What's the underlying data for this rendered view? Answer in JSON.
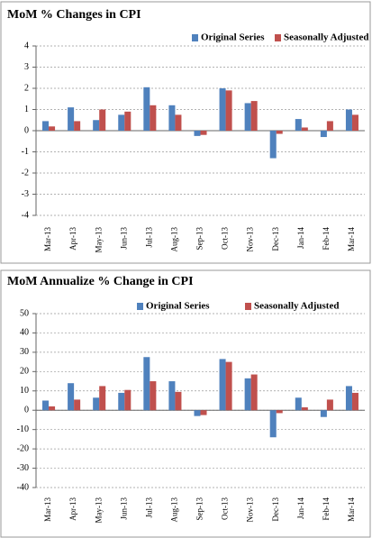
{
  "chart_data": [
    {
      "type": "bar",
      "title": "MoM % Changes in CPI",
      "categories": [
        "Mar-13",
        "Apr-13",
        "May-13",
        "Jun-13",
        "Jul-13",
        "Aug-13",
        "Sep-13",
        "Oct-13",
        "Nov-13",
        "Dec-13",
        "Jan-14",
        "Feb-14",
        "Mar-14"
      ],
      "series": [
        {
          "name": "Original Series",
          "color": "#4f81bd",
          "values": [
            0.45,
            1.1,
            0.5,
            0.75,
            2.05,
            1.2,
            -0.25,
            2.0,
            1.3,
            -1.3,
            0.55,
            -0.3,
            1.0
          ]
        },
        {
          "name": "Seasonally Adjusted",
          "color": "#c0504d",
          "values": [
            0.2,
            0.45,
            1.0,
            0.9,
            1.2,
            0.75,
            -0.2,
            1.9,
            1.4,
            -0.15,
            0.15,
            0.45,
            0.75
          ]
        }
      ],
      "ylim": [
        -4,
        4
      ],
      "yticks": [
        -4,
        -3,
        -2,
        -1,
        0,
        1,
        2,
        3,
        4
      ],
      "grid": true
    },
    {
      "type": "bar",
      "title": "MoM Annualize % Change in CPI",
      "categories": [
        "Mar-13",
        "Apr-13",
        "May-13",
        "Jun-13",
        "Jul-13",
        "Aug-13",
        "Sep-13",
        "Oct-13",
        "Nov-13",
        "Dec-13",
        "Jan-14",
        "Feb-14",
        "Mar-14"
      ],
      "series": [
        {
          "name": "Original Series",
          "color": "#4f81bd",
          "values": [
            5,
            14,
            6.5,
            9,
            27.5,
            15,
            -3,
            26.5,
            16.5,
            -14,
            6.5,
            -3.5,
            12.5
          ]
        },
        {
          "name": "Seasonally Adjusted",
          "color": "#c0504d",
          "values": [
            2,
            5.5,
            12.5,
            10.5,
            15,
            9.5,
            -2.5,
            25,
            18.5,
            -1.5,
            1.5,
            5.5,
            9
          ]
        }
      ],
      "ylim": [
        -40,
        50
      ],
      "yticks": [
        -40,
        -30,
        -20,
        -10,
        0,
        10,
        20,
        30,
        40,
        50
      ],
      "grid": true
    }
  ]
}
